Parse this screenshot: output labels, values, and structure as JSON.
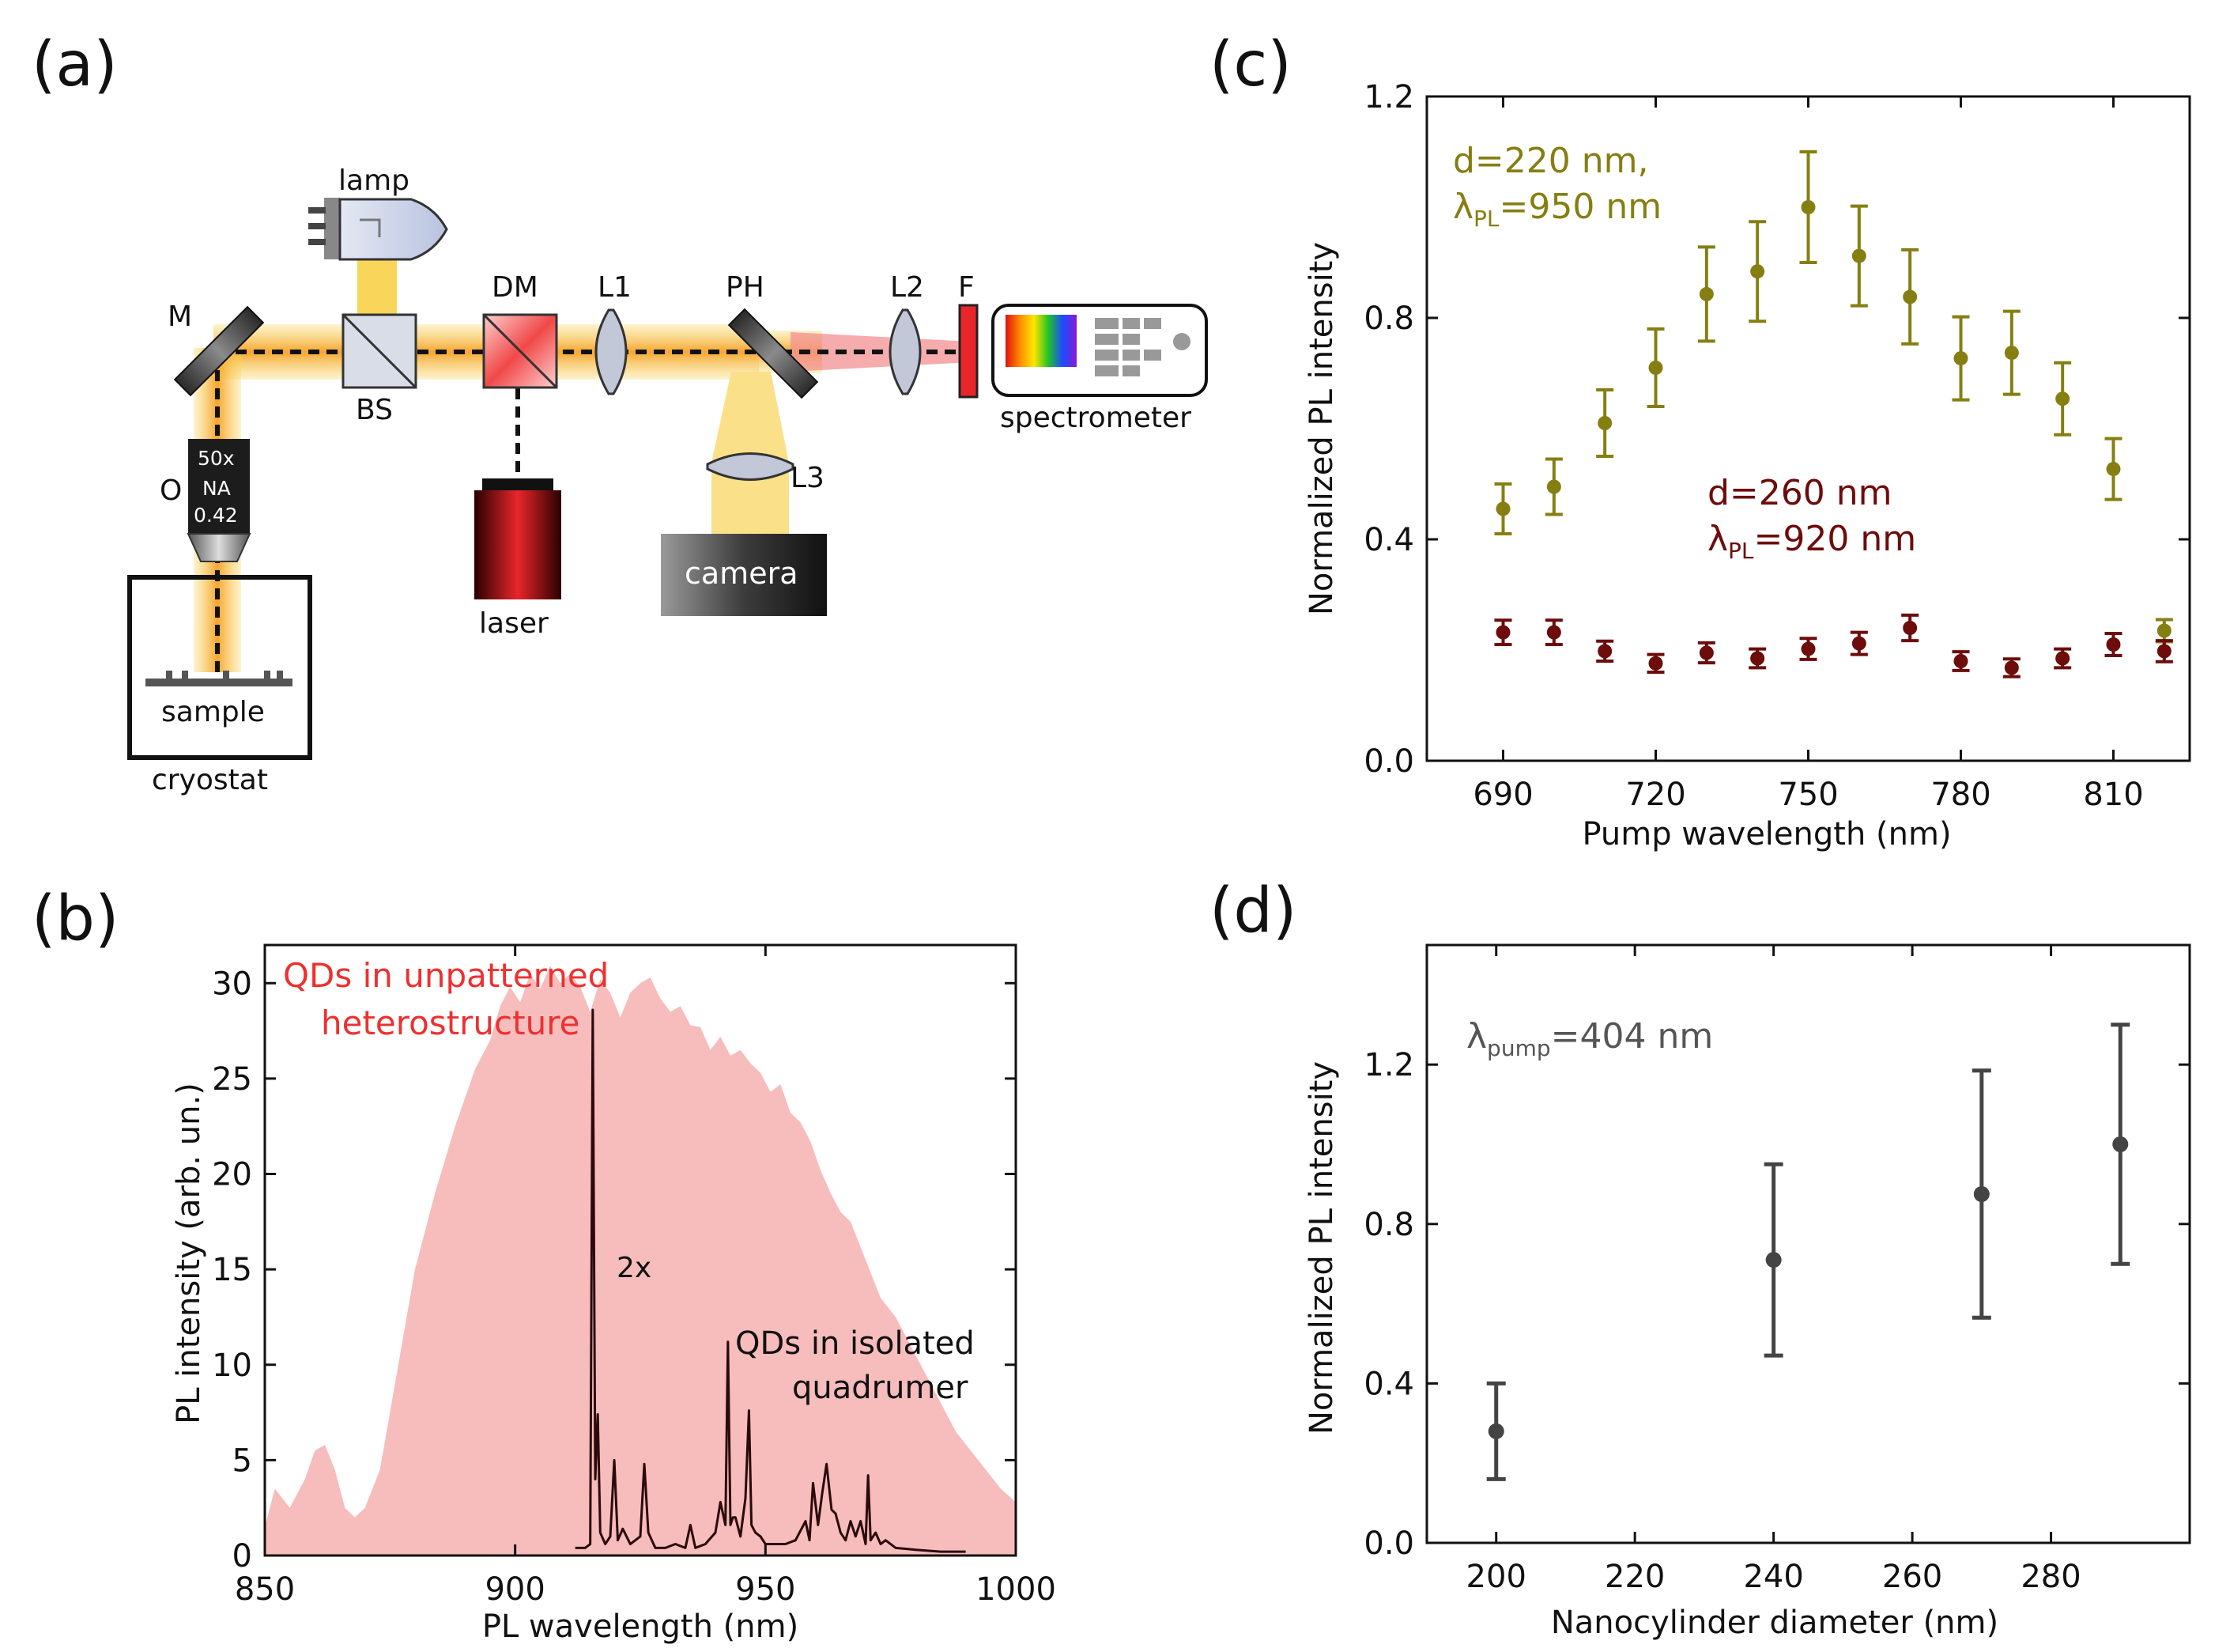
{
  "panels": {
    "a": {
      "label": "(a)",
      "components": {
        "lamp": "lamp",
        "M": "M",
        "BS": "BS",
        "DM": "DM",
        "L1": "L1",
        "PH": "PH",
        "L2": "L2",
        "F": "F",
        "spectrometer": "spectrometer",
        "O": "O",
        "objective_mag": "50x",
        "objective_na": "NA",
        "objective_na_value": "0.42",
        "L3": "L3",
        "camera": "camera",
        "laser": "laser",
        "sample": "sample",
        "cryostat": "cryostat"
      }
    },
    "b": {
      "label": "(b)"
    },
    "c": {
      "label": "(c)"
    },
    "d": {
      "label": "(d)"
    }
  },
  "colors": {
    "olive": "#857f12",
    "darkred": "#6e0b0b",
    "gray": "#444444",
    "pinkfill": "#f7bcbc",
    "redtext": "#ee3030",
    "beam_orange": "#f6a531",
    "beam_yellow": "#f9d55a",
    "laser_red": "#e8262a"
  },
  "chart_data": [
    {
      "id": "b",
      "type": "area",
      "title": "",
      "xlabel": "PL wavelength (nm)",
      "ylabel": "PL intensity (arb. un.)",
      "xlim": [
        850,
        1000
      ],
      "ylim": [
        0,
        32
      ],
      "xticks": [
        850,
        900,
        950,
        1000
      ],
      "yticks": [
        0,
        5,
        10,
        15,
        20,
        25,
        30
      ],
      "annotations": {
        "unpatterned_line1": "QDs in unpatterned",
        "unpatterned_line2": "heterostructure",
        "factor": "2x",
        "quadrumer_line1": "QDs in isolated",
        "quadrumer_line2": "quadrumer"
      },
      "series": [
        {
          "name": "QDs in unpatterned heterostructure",
          "x": [
            850,
            852,
            855,
            858,
            860,
            862,
            864,
            866,
            868,
            870,
            873,
            876,
            880,
            884,
            888,
            892,
            895,
            897,
            899,
            901,
            903,
            905,
            907,
            909,
            911,
            913,
            915,
            917,
            919,
            921,
            923,
            925,
            927,
            929,
            931,
            933,
            935,
            937,
            939,
            941,
            943,
            945,
            947,
            949,
            951,
            953,
            955,
            957,
            959,
            961,
            963,
            965,
            967,
            970,
            973,
            976,
            979,
            982,
            985,
            988,
            991,
            994,
            997,
            1000
          ],
          "values": [
            1.5,
            3.5,
            2.5,
            4.0,
            5.5,
            5.8,
            4.5,
            2.5,
            2.0,
            2.5,
            4.5,
            9.0,
            15.0,
            19.0,
            22.5,
            25.5,
            27.0,
            28.8,
            29.8,
            29.0,
            30.5,
            29.7,
            30.9,
            30.0,
            30.5,
            29.8,
            28.5,
            30.2,
            29.5,
            28.2,
            29.5,
            30.0,
            30.3,
            29.2,
            28.5,
            28.8,
            27.8,
            27.7,
            26.5,
            27.2,
            26.2,
            26.5,
            25.8,
            25.3,
            24.3,
            24.7,
            23.2,
            22.7,
            21.7,
            20.2,
            19.0,
            18.0,
            17.5,
            15.5,
            13.5,
            12.5,
            11.0,
            9.5,
            8.0,
            6.5,
            5.5,
            4.5,
            3.5,
            2.8
          ]
        },
        {
          "name": "QDs in isolated quadrumer",
          "x": [
            912,
            914,
            915,
            915.5,
            916,
            916.5,
            917,
            918,
            919,
            919.8,
            920.5,
            921.5,
            923,
            925,
            925.8,
            926.6,
            928,
            930,
            932,
            934,
            935,
            936,
            938,
            940,
            941,
            942,
            942.5,
            943,
            943.5,
            944,
            945,
            946,
            946.7,
            947.2,
            948,
            949,
            950,
            952,
            954,
            956,
            958,
            958.8,
            959.5,
            960.5,
            961.3,
            962.2,
            963.2,
            964,
            965,
            966,
            967,
            968,
            969,
            970,
            970.5,
            971,
            972,
            973,
            974,
            976,
            980,
            985,
            990
          ],
          "values": [
            0.2,
            0.2,
            0.3,
            14.3,
            2.0,
            3.7,
            0.6,
            0.3,
            0.5,
            2.5,
            0.4,
            0.7,
            0.3,
            0.5,
            2.4,
            0.6,
            0.2,
            0.2,
            0.3,
            0.2,
            0.8,
            0.2,
            0.3,
            0.6,
            1.4,
            0.8,
            5.6,
            0.8,
            1.0,
            1.0,
            0.5,
            1.5,
            3.8,
            0.8,
            0.6,
            0.5,
            0.3,
            0.3,
            0.3,
            0.4,
            0.9,
            0.4,
            1.9,
            0.8,
            1.6,
            2.4,
            1.2,
            1.1,
            0.6,
            0.4,
            0.9,
            0.5,
            0.9,
            0.3,
            2.1,
            0.4,
            0.6,
            0.3,
            0.4,
            0.2,
            0.15,
            0.1,
            0.1
          ]
        }
      ]
    },
    {
      "id": "c",
      "type": "scatter",
      "title": "",
      "xlabel": "Pump wavelength (nm)",
      "ylabel": "Normalized PL intensity",
      "xlim": [
        675,
        825
      ],
      "ylim": [
        0,
        1.2
      ],
      "xticks": [
        690,
        720,
        750,
        780,
        810
      ],
      "yticks": [
        0.0,
        0.4,
        0.8,
        1.2
      ],
      "annotations": {
        "olive_line1": "d=220 nm,",
        "olive_line2_prefix": "λ",
        "olive_line2_sub": "PL",
        "olive_line2_suffix": "=950 nm",
        "red_line1": "d=260 nm",
        "red_line2_prefix": "λ",
        "red_line2_sub": "PL",
        "red_line2_suffix": "=920 nm"
      },
      "series": [
        {
          "name": "d=220 nm, λPL=950 nm",
          "x": [
            690,
            700,
            710,
            720,
            730,
            740,
            750,
            760,
            770,
            780,
            790,
            800,
            810,
            820
          ],
          "values": [
            0.455,
            0.495,
            0.61,
            0.71,
            0.843,
            0.884,
            1.0,
            0.912,
            0.838,
            0.727,
            0.737,
            0.654,
            0.527,
            0.235
          ],
          "errors": [
            0.045,
            0.05,
            0.06,
            0.07,
            0.085,
            0.09,
            0.1,
            0.09,
            0.085,
            0.075,
            0.075,
            0.065,
            0.055,
            0.02
          ]
        },
        {
          "name": "d=260 nm, λPL=920 nm",
          "x": [
            690,
            700,
            710,
            720,
            730,
            740,
            750,
            760,
            770,
            780,
            790,
            800,
            810,
            820
          ],
          "values": [
            0.232,
            0.232,
            0.198,
            0.176,
            0.195,
            0.185,
            0.202,
            0.212,
            0.24,
            0.18,
            0.168,
            0.185,
            0.21,
            0.198
          ],
          "errors": [
            0.022,
            0.022,
            0.018,
            0.016,
            0.018,
            0.017,
            0.019,
            0.02,
            0.023,
            0.017,
            0.016,
            0.017,
            0.02,
            0.019
          ]
        }
      ]
    },
    {
      "id": "d",
      "type": "scatter",
      "title": "",
      "xlabel": "Nanocylinder diameter (nm)",
      "ylabel": "Normalized PL intensity",
      "xlim": [
        190,
        300
      ],
      "ylim": [
        0,
        1.5
      ],
      "xticks": [
        200,
        220,
        240,
        260,
        280
      ],
      "yticks": [
        0.0,
        0.4,
        0.8,
        1.2
      ],
      "annotations": {
        "pump_prefix": "λ",
        "pump_sub": "pump",
        "pump_suffix": "=404 nm"
      },
      "series": [
        {
          "name": "λpump=404 nm",
          "x": [
            200,
            240,
            270,
            290
          ],
          "values": [
            0.28,
            0.71,
            0.875,
            1.0
          ],
          "errors": [
            0.12,
            0.24,
            0.31,
            0.3
          ]
        }
      ]
    }
  ]
}
